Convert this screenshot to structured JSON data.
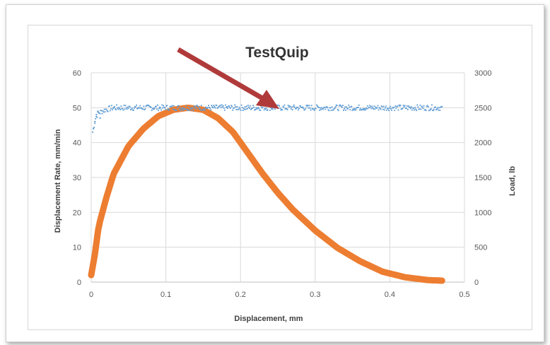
{
  "chart_data": {
    "type": "scatter",
    "title": "TestQuip",
    "xlabel": "Displacement, mm",
    "ylabel": "Displacement Rate, mm/min",
    "y2label": "Load, lb",
    "xlim": [
      0,
      0.5
    ],
    "ylim": [
      0,
      60
    ],
    "y2lim": [
      0,
      3000
    ],
    "xticks": [
      "0",
      "0.1",
      "0.2",
      "0.3",
      "0.4",
      "0.5"
    ],
    "yticks": [
      "0",
      "10",
      "20",
      "30",
      "40",
      "50",
      "60"
    ],
    "y2ticks": [
      "0",
      "500",
      "1000",
      "1500",
      "2000",
      "2500",
      "3000"
    ],
    "grid": true,
    "legend": "none",
    "annotation": "arrow pointing to displacement rate series near x=0.27",
    "series": [
      {
        "axis": "left",
        "color": "#5b9bd5",
        "marker": "small dots",
        "x": [
          0.002,
          0.004,
          0.006,
          0.008,
          0.01,
          0.015,
          0.02,
          0.03,
          0.05,
          0.1,
          0.15,
          0.2,
          0.25,
          0.3,
          0.35,
          0.4,
          0.45,
          0.47
        ],
        "y": [
          43,
          45,
          47,
          48,
          48.5,
          49,
          49.5,
          50,
          50,
          50,
          50,
          50,
          50,
          50,
          50,
          50,
          50,
          50
        ]
      },
      {
        "axis": "right",
        "color": "#ed7d31",
        "marker": "thick line",
        "x": [
          0.0,
          0.005,
          0.01,
          0.02,
          0.03,
          0.05,
          0.07,
          0.09,
          0.11,
          0.13,
          0.15,
          0.17,
          0.19,
          0.21,
          0.23,
          0.25,
          0.27,
          0.3,
          0.33,
          0.36,
          0.39,
          0.42,
          0.45,
          0.47
        ],
        "y": [
          100,
          400,
          800,
          1200,
          1550,
          1950,
          2200,
          2380,
          2470,
          2500,
          2470,
          2350,
          2150,
          1850,
          1550,
          1280,
          1040,
          740,
          490,
          300,
          150,
          70,
          30,
          20
        ]
      }
    ]
  },
  "colors": {
    "rate": "#5b9bd5",
    "load": "#ed7d31",
    "arrow": "#b03a3a",
    "grid": "#d9d9d9"
  }
}
